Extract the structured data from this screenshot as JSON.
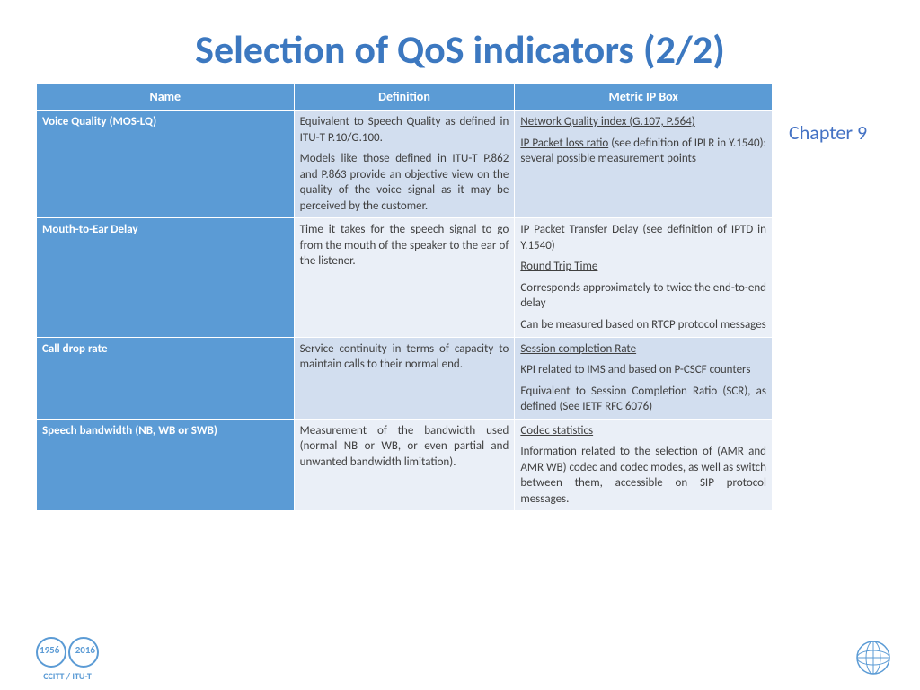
{
  "title": "Selection of QoS indicators (2/2)",
  "title_color": "#3c78c0",
  "side_label": "Chapter 9",
  "side_label_color": "#4472c4",
  "table": {
    "col_widths": [
      "35%",
      "30%",
      "35%"
    ],
    "header_bg": "#5b9bd5",
    "name_col_bg": "#5b9bd5",
    "row_bgs": [
      "#d2deef",
      "#eaeff7",
      "#d2deef",
      "#eaeff7"
    ],
    "columns": [
      "Name",
      "Definition",
      "Metric IP Box"
    ],
    "rows": [
      {
        "name": "Voice Quality (MOS-LQ)",
        "definition": [
          {
            "text": "Equivalent to Speech Quality as defined in ITU-T P.10/G.100."
          },
          {
            "text": "Models like those defined in ITU-T P.862 and P.863 provide an objective view on the quality of the voice signal as it may be perceived by the customer."
          }
        ],
        "metric": [
          {
            "underline_lead": "Network Quality index (G.107, P.564)",
            "rest": ""
          },
          {
            "underline_lead": "IP Packet loss ratio",
            "rest": " (see definition of IPLR in Y.1540): several possible measurement points"
          }
        ]
      },
      {
        "name": "Mouth-to-Ear Delay",
        "definition": [
          {
            "text": "Time it takes for the speech signal to go from the mouth of the speaker to the ear of the listener."
          }
        ],
        "metric": [
          {
            "underline_lead": "IP Packet Transfer Delay",
            "rest": " (see definition of IPTD in Y.1540)"
          },
          {
            "underline_lead": "Round Trip Time",
            "rest": ""
          },
          {
            "text": "Corresponds approximately  to twice the end-to-end delay"
          },
          {
            "text": "Can be measured based on RTCP protocol messages"
          }
        ]
      },
      {
        "name": "Call drop rate",
        "definition": [
          {
            "text": "Service continuity in terms of capacity to maintain calls to their normal end."
          }
        ],
        "metric": [
          {
            "underline_lead": "Session completion Rate",
            "rest": ""
          },
          {
            "text": "KPI related to IMS and based on P-CSCF counters"
          },
          {
            "text": "Equivalent to Session Completion Ratio (SCR), as defined (See IETF RFC 6076)"
          }
        ]
      },
      {
        "name": "Speech bandwidth (NB, WB or SWB)",
        "definition": [
          {
            "text": "Measurement of the bandwidth used (normal NB or WB, or even partial and unwanted bandwidth limitation)."
          }
        ],
        "metric": [
          {
            "underline_lead": "Codec statistics",
            "rest": ""
          },
          {
            "text": "Information related to the selection of (AMR and AMR WB) codec and codec modes, as well as switch between them, accessible on SIP protocol messages."
          }
        ]
      }
    ]
  },
  "logo_left": {
    "year_left": "1956",
    "year_right": "2016",
    "caption": "CCITT / ITU-T"
  },
  "logo_right_color": "#5b9bd5"
}
